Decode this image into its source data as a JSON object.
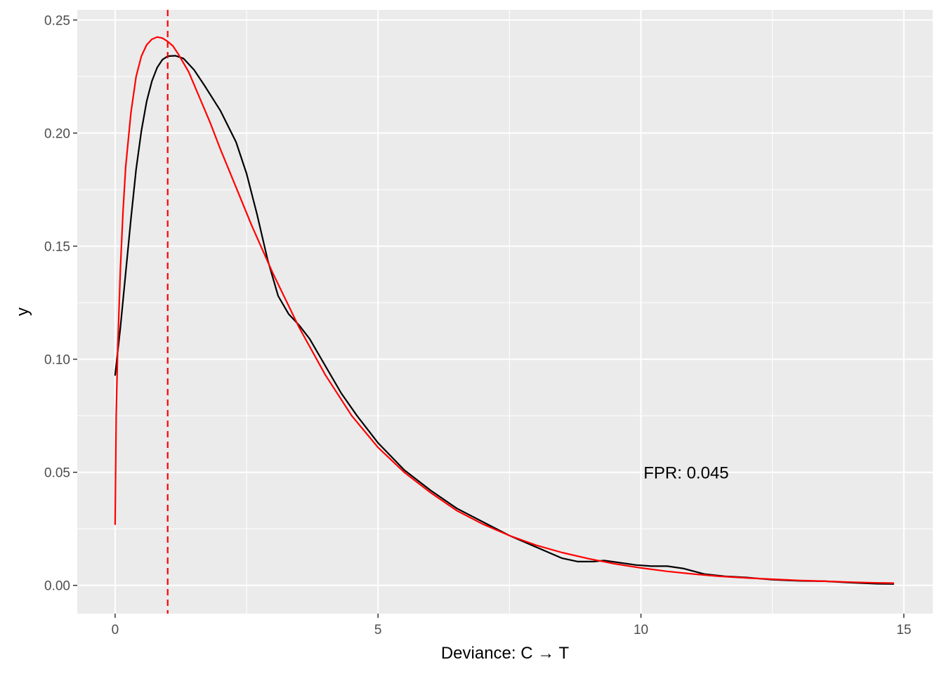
{
  "chart_data": {
    "type": "line",
    "title": "",
    "xlabel": "Deviance: C → T",
    "ylabel": "y",
    "xlim": [
      -0.72,
      15.55
    ],
    "ylim": [
      -0.0125,
      0.2545
    ],
    "x_ticks": [
      0,
      5,
      10,
      15
    ],
    "x_tick_labels": [
      "0",
      "5",
      "10",
      "15"
    ],
    "y_ticks": [
      0.0,
      0.05,
      0.1,
      0.15,
      0.2,
      0.25
    ],
    "y_tick_labels": [
      "0.00",
      "0.05",
      "0.10",
      "0.15",
      "0.20",
      "0.25"
    ],
    "grid": true,
    "background": "#ebebeb",
    "series": [
      {
        "color": "#000000",
        "style": "solid",
        "x": [
          0.0,
          0.1,
          0.2,
          0.3,
          0.4,
          0.5,
          0.6,
          0.7,
          0.8,
          0.9,
          1.0,
          1.15,
          1.3,
          1.5,
          1.7,
          2.0,
          2.3,
          2.5,
          2.7,
          2.9,
          3.1,
          3.3,
          3.5,
          3.7,
          4.0,
          4.3,
          4.6,
          5.0,
          5.5,
          6.0,
          6.5,
          7.0,
          7.5,
          8.0,
          8.5,
          8.8,
          9.1,
          9.3,
          9.6,
          9.9,
          10.2,
          10.5,
          10.8,
          11.2,
          11.6,
          12.0,
          12.5,
          13.0,
          13.5,
          14.0,
          14.5,
          14.8
        ],
        "y": [
          0.093,
          0.114,
          0.138,
          0.162,
          0.184,
          0.201,
          0.214,
          0.223,
          0.229,
          0.2325,
          0.234,
          0.2342,
          0.233,
          0.228,
          0.221,
          0.21,
          0.196,
          0.182,
          0.164,
          0.144,
          0.128,
          0.12,
          0.115,
          0.109,
          0.097,
          0.085,
          0.075,
          0.063,
          0.051,
          0.042,
          0.034,
          0.028,
          0.022,
          0.017,
          0.012,
          0.0105,
          0.0105,
          0.011,
          0.01,
          0.009,
          0.0085,
          0.0085,
          0.0075,
          0.005,
          0.004,
          0.0035,
          0.0025,
          0.002,
          0.0018,
          0.0012,
          0.0007,
          0.0006
        ]
      },
      {
        "color": "#ff0000",
        "style": "solid",
        "x": [
          0.0,
          0.02,
          0.05,
          0.1,
          0.15,
          0.2,
          0.3,
          0.4,
          0.5,
          0.6,
          0.7,
          0.8,
          0.9,
          1.0,
          1.1,
          1.2,
          1.4,
          1.6,
          1.8,
          2.0,
          2.3,
          2.6,
          3.0,
          3.5,
          4.0,
          4.5,
          5.0,
          5.5,
          6.0,
          6.5,
          7.0,
          7.5,
          8.0,
          8.5,
          9.0,
          9.5,
          10.0,
          10.5,
          11.0,
          11.5,
          12.0,
          12.5,
          13.0,
          13.5,
          14.0,
          14.5,
          14.8
        ],
        "y": [
          0.027,
          0.075,
          0.105,
          0.14,
          0.165,
          0.185,
          0.209,
          0.225,
          0.234,
          0.239,
          0.2415,
          0.2425,
          0.242,
          0.2405,
          0.2385,
          0.235,
          0.227,
          0.216,
          0.205,
          0.193,
          0.176,
          0.159,
          0.138,
          0.114,
          0.093,
          0.075,
          0.061,
          0.05,
          0.041,
          0.033,
          0.027,
          0.022,
          0.0178,
          0.0145,
          0.0118,
          0.0095,
          0.0077,
          0.0062,
          0.005,
          0.004,
          0.0033,
          0.0027,
          0.0022,
          0.0018,
          0.0014,
          0.0011,
          0.001
        ]
      }
    ],
    "vline": {
      "x": 1.0,
      "color": "#ff0000",
      "style": "dashed"
    },
    "annotations": [
      {
        "text": "FPR: 0.045",
        "x": 10.05,
        "y": 0.05
      }
    ]
  }
}
